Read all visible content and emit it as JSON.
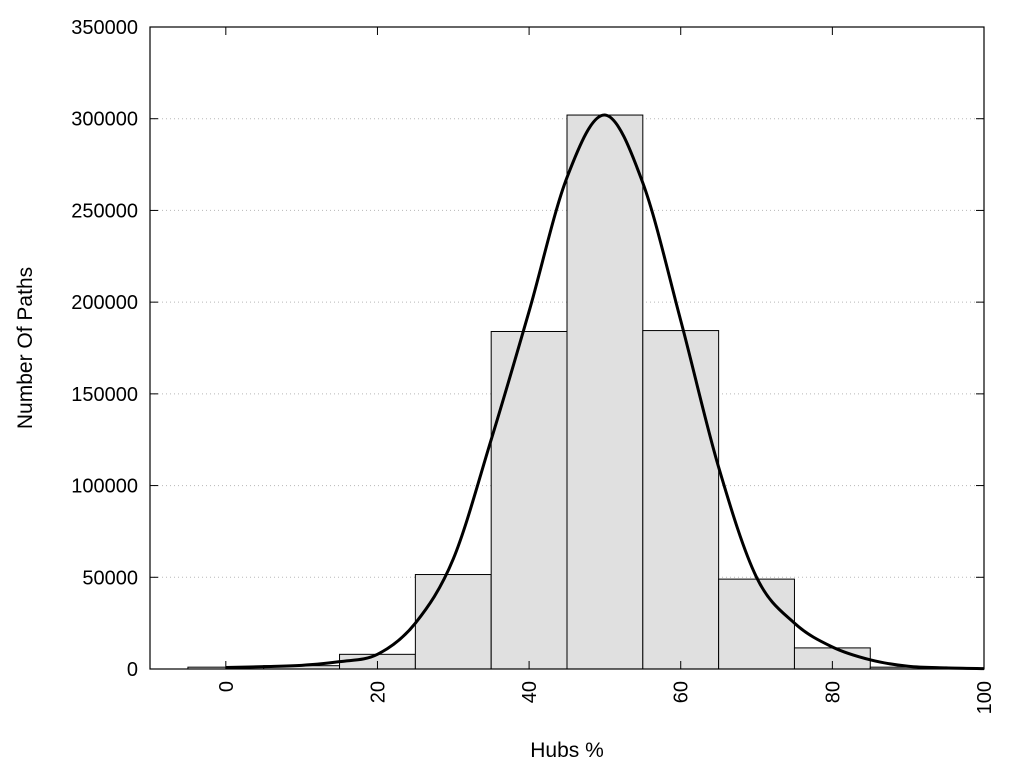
{
  "chart_data": {
    "type": "bar",
    "title": "",
    "xlabel": "Hubs %",
    "ylabel": "Number Of Paths",
    "xlim": [
      -10,
      100
    ],
    "ylim": [
      0,
      350000
    ],
    "x_ticks": [
      "0",
      "20",
      "40",
      "60",
      "80",
      "100"
    ],
    "y_ticks": [
      "0",
      "50000",
      "100000",
      "150000",
      "200000",
      "250000",
      "300000",
      "350000"
    ],
    "grid": "horizontal-dotted",
    "bar_color": "#e0e0e0",
    "bar_stroke": "#000000",
    "bins": [
      {
        "x0": -5,
        "x1": 5,
        "value": 1000
      },
      {
        "x0": 5,
        "x1": 15,
        "value": 1800
      },
      {
        "x0": 15,
        "x1": 25,
        "value": 8000
      },
      {
        "x0": 25,
        "x1": 35,
        "value": 51500
      },
      {
        "x0": 35,
        "x1": 45,
        "value": 184000
      },
      {
        "x0": 45,
        "x1": 55,
        "value": 302000
      },
      {
        "x0": 55,
        "x1": 65,
        "value": 184500
      },
      {
        "x0": 65,
        "x1": 75,
        "value": 49000
      },
      {
        "x0": 75,
        "x1": 85,
        "value": 11500
      },
      {
        "x0": 85,
        "x1": 95,
        "value": 1000
      },
      {
        "x0": 95,
        "x1": 100,
        "value": 300
      }
    ],
    "curve": {
      "color": "#000000",
      "x": [
        0,
        5,
        10,
        15,
        20,
        25,
        30,
        35,
        40,
        45,
        50,
        55,
        60,
        65,
        70,
        75,
        80,
        85,
        90,
        95,
        100
      ],
      "y": [
        800,
        1300,
        2000,
        4000,
        8000,
        25000,
        60000,
        125000,
        195000,
        268000,
        302000,
        265000,
        190000,
        110000,
        50000,
        25000,
        12000,
        5000,
        1500,
        600,
        200
      ]
    }
  }
}
